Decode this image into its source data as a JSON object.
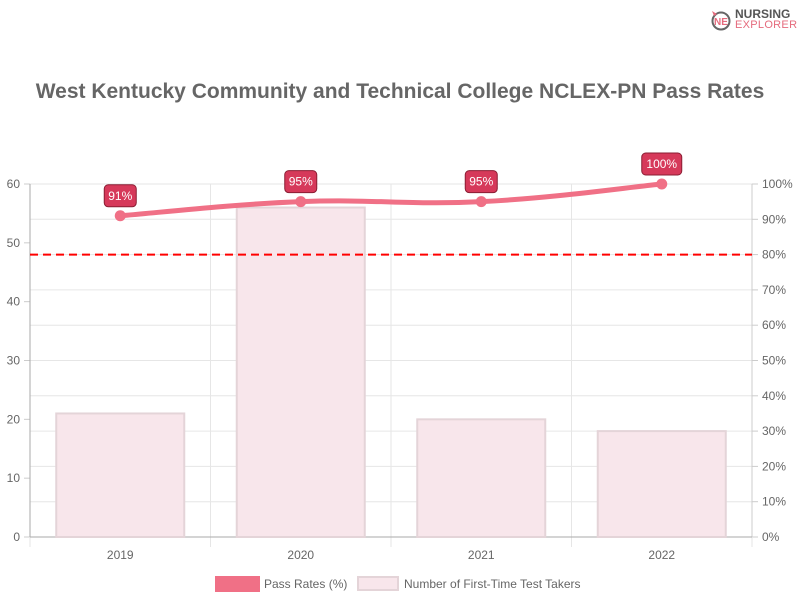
{
  "logo": {
    "line1": "NURSING",
    "line2": "EXPLORER"
  },
  "chart_data": {
    "type": "bar+line",
    "title": "West Kentucky Community and Technical College NCLEX-PN Pass Rates",
    "categories": [
      "2019",
      "2020",
      "2021",
      "2022"
    ],
    "series": [
      {
        "name": "Pass Rates (%)",
        "type": "line",
        "axis": "right",
        "values": [
          91,
          95,
          95,
          100
        ],
        "labels": [
          "91%",
          "95%",
          "95%",
          "100%"
        ],
        "color": "#f07086"
      },
      {
        "name": "Number of First-Time Test Takers",
        "type": "bar",
        "axis": "left",
        "values": [
          21,
          56,
          20,
          18
        ],
        "color": "#f8e6eb"
      }
    ],
    "reference_line": {
      "axis": "right",
      "value": 80,
      "color": "#ff0000",
      "style": "dashed"
    },
    "left_axis": {
      "ylim": [
        0,
        60
      ],
      "ticks": [
        "0",
        "10",
        "20",
        "30",
        "40",
        "50",
        "60"
      ]
    },
    "right_axis": {
      "ylim": [
        0,
        100
      ],
      "ticks": [
        "0%",
        "10%",
        "20%",
        "30%",
        "40%",
        "50%",
        "60%",
        "70%",
        "80%",
        "90%",
        "100%"
      ]
    },
    "grid": true,
    "legend": "bottom",
    "label_color": "#d6395a"
  }
}
